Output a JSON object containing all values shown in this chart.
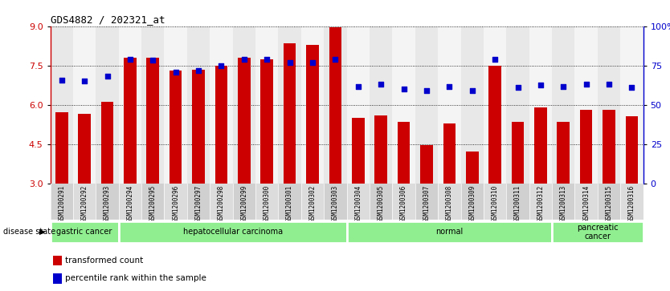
{
  "title": "GDS4882 / 202321_at",
  "samples": [
    "GSM1200291",
    "GSM1200292",
    "GSM1200293",
    "GSM1200294",
    "GSM1200295",
    "GSM1200296",
    "GSM1200297",
    "GSM1200298",
    "GSM1200299",
    "GSM1200300",
    "GSM1200301",
    "GSM1200302",
    "GSM1200303",
    "GSM1200304",
    "GSM1200305",
    "GSM1200306",
    "GSM1200307",
    "GSM1200308",
    "GSM1200309",
    "GSM1200310",
    "GSM1200311",
    "GSM1200312",
    "GSM1200313",
    "GSM1200314",
    "GSM1200315",
    "GSM1200316"
  ],
  "bar_values": [
    5.7,
    5.65,
    6.1,
    7.8,
    7.8,
    7.3,
    7.35,
    7.5,
    7.8,
    7.75,
    8.35,
    8.3,
    8.95,
    5.5,
    5.6,
    5.35,
    4.45,
    5.3,
    4.2,
    7.5,
    5.35,
    5.9,
    5.35,
    5.8,
    5.8,
    5.55
  ],
  "percentile_values": [
    6.95,
    6.9,
    7.1,
    7.75,
    7.7,
    7.25,
    7.3,
    7.5,
    7.75,
    7.75,
    7.6,
    7.6,
    7.75,
    6.7,
    6.8,
    6.6,
    6.55,
    6.7,
    6.55,
    7.75,
    6.65,
    6.75,
    6.7,
    6.8,
    6.8,
    6.65
  ],
  "bar_color": "#cc0000",
  "dot_color": "#0000cc",
  "ylim_left": [
    3,
    9
  ],
  "yticks_left": [
    3,
    4.5,
    6,
    7.5,
    9
  ],
  "yticks_right_labels": [
    "0",
    "25",
    "50",
    "75",
    "100%"
  ],
  "yticks_right_vals": [
    3,
    4.5,
    6,
    7.5,
    9
  ],
  "disease_state_label": "disease state",
  "legend_bar_label": "transformed count",
  "legend_dot_label": "percentile rank within the sample",
  "plot_bg_color": "#ffffff",
  "grid_color": "#000000",
  "group_defs": [
    {
      "label": "gastric cancer",
      "count": 3
    },
    {
      "label": "hepatocellular carcinoma",
      "count": 10
    },
    {
      "label": "normal",
      "count": 9
    },
    {
      "label": "pancreatic\ncancer",
      "count": 4
    }
  ],
  "group_green": "#90EE90",
  "xtick_bg": "#d8d8d8"
}
